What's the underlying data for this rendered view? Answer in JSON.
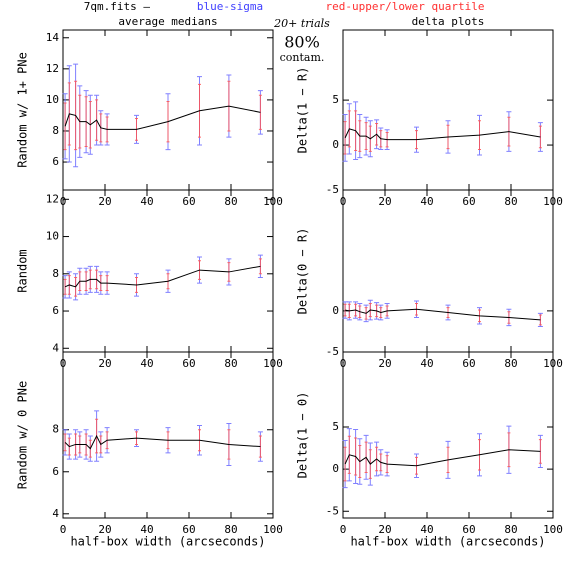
{
  "header": {
    "file": "7qm.fits –",
    "sigma": "blue-sigma",
    "quartile": "red-upper/lower quartile"
  },
  "notes": {
    "trials": "20+ trials",
    "percent": "80%",
    "contam": "contam."
  },
  "chart_data": [
    {
      "type": "line",
      "title": "average medians",
      "ylabel": "Random w/ 1+ PNe",
      "x": [
        1,
        3,
        6,
        8,
        11,
        13,
        16,
        18,
        21,
        35,
        50,
        65,
        79,
        94
      ],
      "values": [
        8.3,
        9.1,
        9.0,
        8.6,
        8.6,
        8.4,
        8.7,
        8.2,
        8.1,
        8.1,
        8.6,
        9.3,
        9.6,
        9.2
      ],
      "sigma": [
        2.1,
        3.1,
        3.3,
        2.3,
        2.0,
        1.9,
        1.6,
        1.1,
        1.0,
        0.9,
        1.8,
        2.2,
        2.0,
        1.4
      ],
      "quartile": [
        1.5,
        2.0,
        2.2,
        1.7,
        1.6,
        1.5,
        1.3,
        0.9,
        0.8,
        0.7,
        1.3,
        1.7,
        1.6,
        1.1
      ],
      "xlim": [
        0,
        100
      ],
      "ylim": [
        4.2,
        14.5
      ],
      "xticks": [
        0,
        20,
        40,
        60,
        80,
        100
      ],
      "yticks": [
        6,
        8,
        10,
        12,
        14
      ],
      "color": "#000000",
      "sigma_color": "#6a6aff",
      "quartile_color": "#ff5050"
    },
    {
      "type": "line",
      "title": "delta plots",
      "ylabel": "Delta(1 − R)",
      "x": [
        1,
        3,
        6,
        8,
        11,
        13,
        16,
        18,
        21,
        35,
        50,
        65,
        79,
        94
      ],
      "values": [
        0.8,
        1.8,
        1.6,
        1.0,
        1.0,
        0.7,
        1.2,
        0.7,
        0.6,
        0.6,
        0.9,
        1.1,
        1.5,
        0.9
      ],
      "sigma": [
        2.6,
        2.8,
        3.2,
        2.4,
        2.1,
        2.0,
        1.6,
        1.2,
        1.1,
        1.4,
        1.8,
        2.2,
        2.2,
        1.6
      ],
      "quartile": [
        1.8,
        2.0,
        2.2,
        1.7,
        1.5,
        1.4,
        1.2,
        0.9,
        0.8,
        1.0,
        1.3,
        1.6,
        1.6,
        1.2
      ],
      "xlim": [
        0,
        100
      ],
      "ylim": [
        -5,
        12.8
      ],
      "xticks": [
        0,
        20,
        40,
        60,
        80,
        100
      ],
      "yticks": [
        -5,
        0,
        5
      ],
      "color": "#000000",
      "sigma_color": "#6a6aff",
      "quartile_color": "#ff5050"
    },
    {
      "type": "line",
      "ylabel": "Random",
      "x": [
        1,
        3,
        6,
        8,
        11,
        13,
        16,
        18,
        21,
        35,
        50,
        65,
        79,
        94
      ],
      "values": [
        7.3,
        7.4,
        7.3,
        7.6,
        7.6,
        7.7,
        7.7,
        7.5,
        7.5,
        7.4,
        7.6,
        8.2,
        8.1,
        8.4
      ],
      "sigma": [
        0.6,
        0.7,
        0.7,
        0.7,
        0.7,
        0.7,
        0.7,
        0.6,
        0.6,
        0.6,
        0.6,
        0.7,
        0.7,
        0.6
      ],
      "quartile": [
        0.4,
        0.5,
        0.5,
        0.5,
        0.5,
        0.5,
        0.5,
        0.4,
        0.4,
        0.4,
        0.4,
        0.5,
        0.5,
        0.4
      ],
      "xlim": [
        0,
        100
      ],
      "ylim": [
        3.8,
        12.5
      ],
      "xticks": [
        0,
        20,
        40,
        60,
        80,
        100
      ],
      "yticks": [
        4,
        6,
        8,
        10,
        12
      ],
      "color": "#000000",
      "sigma_color": "#6a6aff",
      "quartile_color": "#ff5050"
    },
    {
      "type": "line",
      "ylabel": "Delta(0 − R)",
      "x": [
        1,
        3,
        6,
        8,
        11,
        13,
        16,
        18,
        21,
        35,
        50,
        65,
        79,
        94
      ],
      "values": [
        0.1,
        0.0,
        0.1,
        -0.1,
        -0.3,
        0.1,
        0.0,
        -0.2,
        0.0,
        0.2,
        -0.2,
        -0.6,
        -0.8,
        -1.1
      ],
      "sigma": [
        1.0,
        1.1,
        1.0,
        1.0,
        1.0,
        1.2,
        1.0,
        0.9,
        0.9,
        1.0,
        0.9,
        1.0,
        1.0,
        0.8
      ],
      "quartile": [
        0.7,
        0.8,
        0.7,
        0.7,
        0.7,
        0.8,
        0.7,
        0.6,
        0.6,
        0.7,
        0.6,
        0.7,
        0.7,
        0.6
      ],
      "xlim": [
        0,
        100
      ],
      "ylim": [
        -5,
        14.7
      ],
      "xticks": [
        0,
        20,
        40,
        60,
        80,
        100
      ],
      "yticks": [
        -5,
        0
      ],
      "color": "#000000",
      "sigma_color": "#6a6aff",
      "quartile_color": "#ff5050"
    },
    {
      "type": "line",
      "ylabel": "Random w/ 0 PNe",
      "xlabel": "half-box width (arcseconds)",
      "x": [
        1,
        3,
        6,
        8,
        11,
        13,
        16,
        18,
        21,
        35,
        50,
        65,
        79,
        94
      ],
      "values": [
        7.4,
        7.2,
        7.3,
        7.3,
        7.3,
        7.1,
        7.7,
        7.3,
        7.5,
        7.6,
        7.5,
        7.5,
        7.3,
        7.2
      ],
      "sigma": [
        0.6,
        0.6,
        0.7,
        0.6,
        0.7,
        0.6,
        1.2,
        0.6,
        0.6,
        0.4,
        0.6,
        0.7,
        1.0,
        0.7
      ],
      "quartile": [
        0.4,
        0.4,
        0.5,
        0.4,
        0.5,
        0.4,
        0.8,
        0.4,
        0.4,
        0.3,
        0.4,
        0.5,
        0.7,
        0.5
      ],
      "xlim": [
        0,
        100
      ],
      "ylim": [
        3.8,
        11.7
      ],
      "xticks": [
        0,
        20,
        40,
        60,
        80,
        100
      ],
      "yticks": [
        4,
        6,
        8
      ],
      "color": "#000000",
      "sigma_color": "#6a6aff",
      "quartile_color": "#ff5050"
    },
    {
      "type": "line",
      "ylabel": "Delta(1 − 0)",
      "xlabel": "half-box width (arcseconds)",
      "x": [
        1,
        3,
        6,
        8,
        11,
        13,
        16,
        18,
        21,
        35,
        50,
        65,
        79,
        94
      ],
      "values": [
        0.6,
        1.7,
        1.5,
        0.9,
        1.4,
        0.6,
        1.2,
        0.8,
        0.6,
        0.4,
        1.1,
        1.7,
        2.3,
        2.1
      ],
      "sigma": [
        2.8,
        3.1,
        3.2,
        2.7,
        2.6,
        2.5,
        2.0,
        1.5,
        1.4,
        1.4,
        2.2,
        2.5,
        2.8,
        1.9
      ],
      "quartile": [
        2.0,
        2.2,
        2.2,
        1.9,
        1.8,
        1.7,
        1.4,
        1.0,
        1.0,
        1.0,
        1.5,
        1.8,
        2.0,
        1.4
      ],
      "xlim": [
        0,
        100
      ],
      "ylim": [
        -5.8,
        13.9
      ],
      "xticks": [
        0,
        20,
        40,
        60,
        80,
        100
      ],
      "yticks": [
        -5,
        0,
        5
      ],
      "color": "#000000",
      "sigma_color": "#6a6aff",
      "quartile_color": "#ff5050"
    }
  ]
}
